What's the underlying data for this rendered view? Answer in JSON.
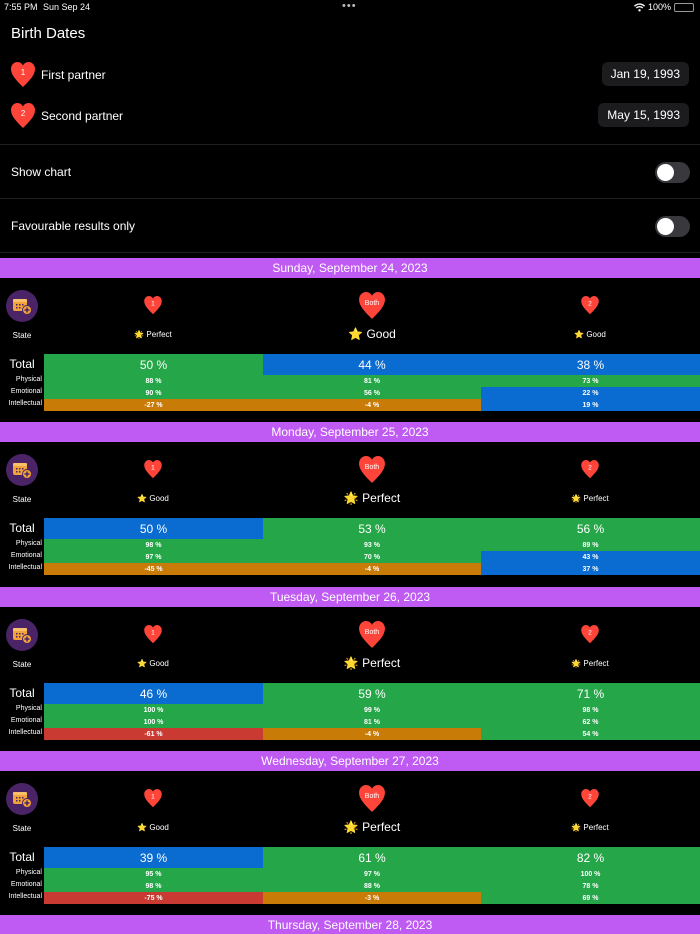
{
  "status_bar": {
    "time": "7:55 PM",
    "date": "Sun Sep 24",
    "multitask_dots": "•••",
    "wifi_icon": "wifi",
    "battery_percent": "100%"
  },
  "birth_dates": {
    "title": "Birth Dates",
    "partners": [
      {
        "badge": "1",
        "label": "First partner",
        "date": "Jan 19, 1993"
      },
      {
        "badge": "2",
        "label": "Second partner",
        "date": "May 15, 1993"
      }
    ]
  },
  "options": {
    "show_chart": {
      "label": "Show chart",
      "on": false
    },
    "favourable_only": {
      "label": "Favourable results only",
      "on": false
    }
  },
  "colors": {
    "header_purple": "#bf5af2",
    "good_green": "#25a648",
    "neutral_blue": "#0a6bd0",
    "warn_orange": "#c97b07",
    "bad_red": "#c93a32",
    "heart_red": "#ff453a",
    "cal_circle": "#4a2466",
    "cal_icon": "#f2a33a"
  },
  "labels": {
    "state": "State",
    "total": "Total",
    "physical": "Physical",
    "emotional": "Emotional",
    "intellectual": "Intellectual",
    "col_badges": [
      "1",
      "Both",
      "2"
    ]
  },
  "days": [
    {
      "date": "Sunday, September 24, 2023",
      "states": [
        {
          "icon": "glowing-star",
          "text": "Perfect"
        },
        {
          "icon": "star",
          "text": "Good"
        },
        {
          "icon": "star",
          "text": "Good"
        }
      ],
      "total": [
        {
          "v": "50 %",
          "c": "green"
        },
        {
          "v": "44 %",
          "c": "blue"
        },
        {
          "v": "38 %",
          "c": "blue"
        }
      ],
      "physical": [
        {
          "v": "88 %",
          "c": "green"
        },
        {
          "v": "81 %",
          "c": "green"
        },
        {
          "v": "73 %",
          "c": "green"
        }
      ],
      "emotional": [
        {
          "v": "90 %",
          "c": "green"
        },
        {
          "v": "56 %",
          "c": "green"
        },
        {
          "v": "22 %",
          "c": "blue"
        }
      ],
      "intellectual": [
        {
          "v": "-27 %",
          "c": "orange"
        },
        {
          "v": "-4 %",
          "c": "orange"
        },
        {
          "v": "19 %",
          "c": "blue"
        }
      ]
    },
    {
      "date": "Monday, September 25, 2023",
      "states": [
        {
          "icon": "star",
          "text": "Good"
        },
        {
          "icon": "glowing-star",
          "text": "Perfect"
        },
        {
          "icon": "glowing-star",
          "text": "Perfect"
        }
      ],
      "total": [
        {
          "v": "50 %",
          "c": "blue"
        },
        {
          "v": "53 %",
          "c": "green"
        },
        {
          "v": "56 %",
          "c": "green"
        }
      ],
      "physical": [
        {
          "v": "98 %",
          "c": "green"
        },
        {
          "v": "93 %",
          "c": "green"
        },
        {
          "v": "89 %",
          "c": "green"
        }
      ],
      "emotional": [
        {
          "v": "97 %",
          "c": "green"
        },
        {
          "v": "70 %",
          "c": "green"
        },
        {
          "v": "43 %",
          "c": "blue"
        }
      ],
      "intellectual": [
        {
          "v": "-45 %",
          "c": "orange"
        },
        {
          "v": "-4 %",
          "c": "orange"
        },
        {
          "v": "37 %",
          "c": "blue"
        }
      ]
    },
    {
      "date": "Tuesday, September 26, 2023",
      "states": [
        {
          "icon": "star",
          "text": "Good"
        },
        {
          "icon": "glowing-star",
          "text": "Perfect"
        },
        {
          "icon": "glowing-star",
          "text": "Perfect"
        }
      ],
      "total": [
        {
          "v": "46 %",
          "c": "blue"
        },
        {
          "v": "59 %",
          "c": "green"
        },
        {
          "v": "71 %",
          "c": "green"
        }
      ],
      "physical": [
        {
          "v": "100 %",
          "c": "green"
        },
        {
          "v": "99 %",
          "c": "green"
        },
        {
          "v": "98 %",
          "c": "green"
        }
      ],
      "emotional": [
        {
          "v": "100 %",
          "c": "green"
        },
        {
          "v": "81 %",
          "c": "green"
        },
        {
          "v": "62 %",
          "c": "green"
        }
      ],
      "intellectual": [
        {
          "v": "-61 %",
          "c": "red"
        },
        {
          "v": "-4 %",
          "c": "orange"
        },
        {
          "v": "54 %",
          "c": "green"
        }
      ]
    },
    {
      "date": "Wednesday, September 27, 2023",
      "states": [
        {
          "icon": "star",
          "text": "Good"
        },
        {
          "icon": "glowing-star",
          "text": "Perfect"
        },
        {
          "icon": "glowing-star",
          "text": "Perfect"
        }
      ],
      "total": [
        {
          "v": "39 %",
          "c": "blue"
        },
        {
          "v": "61 %",
          "c": "green"
        },
        {
          "v": "82 %",
          "c": "green"
        }
      ],
      "physical": [
        {
          "v": "95 %",
          "c": "green"
        },
        {
          "v": "97 %",
          "c": "green"
        },
        {
          "v": "100 %",
          "c": "green"
        }
      ],
      "emotional": [
        {
          "v": "98 %",
          "c": "green"
        },
        {
          "v": "88 %",
          "c": "green"
        },
        {
          "v": "78 %",
          "c": "green"
        }
      ],
      "intellectual": [
        {
          "v": "-75 %",
          "c": "red"
        },
        {
          "v": "-3 %",
          "c": "orange"
        },
        {
          "v": "69 %",
          "c": "green"
        }
      ]
    },
    {
      "date": "Thursday, September 28, 2023"
    }
  ]
}
